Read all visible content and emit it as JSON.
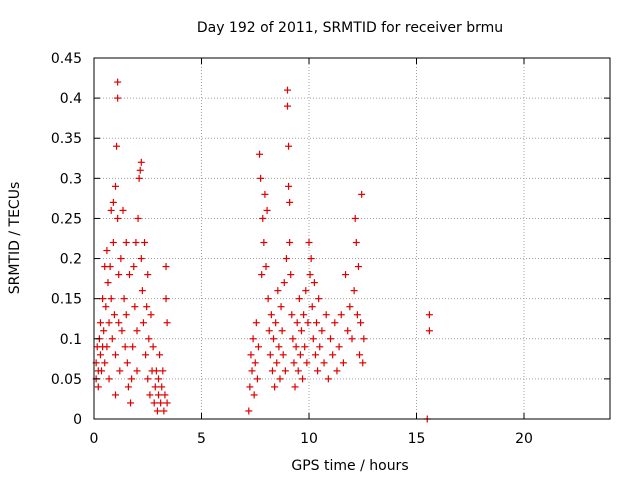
{
  "chart_data": {
    "type": "scatter",
    "title": "Day 192 of 2011, SRMTID for receiver brmu",
    "xlabel": "GPS time / hours",
    "ylabel": "SRMTID / TECUs",
    "xlim": [
      0,
      24
    ],
    "ylim": [
      0,
      0.45
    ],
    "xticks": [
      0,
      5,
      10,
      15,
      20
    ],
    "yticks": [
      0,
      0.05,
      0.1,
      0.15,
      0.2,
      0.25,
      0.3,
      0.35,
      0.4,
      0.45
    ],
    "ytick_labels": [
      "0",
      "0.05",
      "0.1",
      "0.15",
      "0.2",
      "0.25",
      "0.3",
      "0.35",
      "0.4",
      "0.45"
    ],
    "grid": true,
    "marker": "+",
    "color": "#e00000",
    "points": [
      [
        0.1,
        0.05
      ],
      [
        0.1,
        0.07
      ],
      [
        0.15,
        0.09
      ],
      [
        0.2,
        0.06
      ],
      [
        0.2,
        0.04
      ],
      [
        0.25,
        0.1
      ],
      [
        0.3,
        0.08
      ],
      [
        0.3,
        0.12
      ],
      [
        0.35,
        0.06
      ],
      [
        0.4,
        0.09
      ],
      [
        0.4,
        0.15
      ],
      [
        0.45,
        0.11
      ],
      [
        0.5,
        0.07
      ],
      [
        0.5,
        0.19
      ],
      [
        0.55,
        0.14
      ],
      [
        0.6,
        0.09
      ],
      [
        0.6,
        0.21
      ],
      [
        0.65,
        0.17
      ],
      [
        0.7,
        0.12
      ],
      [
        0.7,
        0.05
      ],
      [
        0.75,
        0.19
      ],
      [
        0.8,
        0.26
      ],
      [
        0.8,
        0.15
      ],
      [
        0.85,
        0.1
      ],
      [
        0.9,
        0.27
      ],
      [
        0.9,
        0.22
      ],
      [
        0.95,
        0.13
      ],
      [
        1.0,
        0.29
      ],
      [
        1.0,
        0.03
      ],
      [
        1.0,
        0.08
      ],
      [
        1.05,
        0.34
      ],
      [
        1.1,
        0.42
      ],
      [
        1.1,
        0.4
      ],
      [
        1.1,
        0.25
      ],
      [
        1.15,
        0.18
      ],
      [
        1.15,
        0.12
      ],
      [
        1.2,
        0.06
      ],
      [
        1.25,
        0.2
      ],
      [
        1.3,
        0.11
      ],
      [
        1.35,
        0.26
      ],
      [
        1.4,
        0.15
      ],
      [
        1.45,
        0.09
      ],
      [
        1.5,
        0.22
      ],
      [
        1.5,
        0.13
      ],
      [
        1.55,
        0.07
      ],
      [
        1.6,
        0.04
      ],
      [
        1.65,
        0.18
      ],
      [
        1.7,
        0.02
      ],
      [
        1.75,
        0.05
      ],
      [
        1.8,
        0.09
      ],
      [
        1.85,
        0.19
      ],
      [
        1.9,
        0.14
      ],
      [
        1.95,
        0.22
      ],
      [
        2.0,
        0.11
      ],
      [
        2.0,
        0.06
      ],
      [
        2.05,
        0.25
      ],
      [
        2.1,
        0.3
      ],
      [
        2.15,
        0.31
      ],
      [
        2.2,
        0.32
      ],
      [
        2.2,
        0.2
      ],
      [
        2.25,
        0.16
      ],
      [
        2.3,
        0.12
      ],
      [
        2.35,
        0.22
      ],
      [
        2.4,
        0.08
      ],
      [
        2.45,
        0.14
      ],
      [
        2.5,
        0.18
      ],
      [
        2.5,
        0.05
      ],
      [
        2.55,
        0.1
      ],
      [
        2.6,
        0.03
      ],
      [
        2.65,
        0.13
      ],
      [
        2.7,
        0.06
      ],
      [
        2.75,
        0.09
      ],
      [
        2.8,
        0.02
      ],
      [
        2.85,
        0.04
      ],
      [
        2.9,
        0.06
      ],
      [
        2.95,
        0.01
      ],
      [
        3.0,
        0.03
      ],
      [
        3.0,
        0.05
      ],
      [
        3.05,
        0.08
      ],
      [
        3.1,
        0.02
      ],
      [
        3.15,
        0.04
      ],
      [
        3.2,
        0.06
      ],
      [
        3.25,
        0.01
      ],
      [
        3.3,
        0.03
      ],
      [
        3.35,
        0.15
      ],
      [
        3.35,
        0.19
      ],
      [
        3.4,
        0.12
      ],
      [
        3.4,
        0.02
      ],
      [
        7.2,
        0.01
      ],
      [
        7.25,
        0.04
      ],
      [
        7.3,
        0.08
      ],
      [
        7.35,
        0.06
      ],
      [
        7.4,
        0.1
      ],
      [
        7.45,
        0.03
      ],
      [
        7.5,
        0.07
      ],
      [
        7.55,
        0.12
      ],
      [
        7.6,
        0.05
      ],
      [
        7.65,
        0.09
      ],
      [
        7.7,
        0.33
      ],
      [
        7.75,
        0.3
      ],
      [
        7.8,
        0.18
      ],
      [
        7.85,
        0.25
      ],
      [
        7.9,
        0.22
      ],
      [
        7.95,
        0.28
      ],
      [
        8.0,
        0.19
      ],
      [
        8.05,
        0.26
      ],
      [
        8.1,
        0.15
      ],
      [
        8.15,
        0.11
      ],
      [
        8.2,
        0.08
      ],
      [
        8.25,
        0.13
      ],
      [
        8.3,
        0.06
      ],
      [
        8.35,
        0.1
      ],
      [
        8.4,
        0.04
      ],
      [
        8.45,
        0.12
      ],
      [
        8.5,
        0.07
      ],
      [
        8.55,
        0.16
      ],
      [
        8.6,
        0.09
      ],
      [
        8.65,
        0.05
      ],
      [
        8.7,
        0.14
      ],
      [
        8.75,
        0.11
      ],
      [
        8.8,
        0.08
      ],
      [
        8.85,
        0.17
      ],
      [
        8.9,
        0.06
      ],
      [
        8.95,
        0.2
      ],
      [
        9.0,
        0.41
      ],
      [
        9.0,
        0.39
      ],
      [
        9.05,
        0.34
      ],
      [
        9.05,
        0.29
      ],
      [
        9.1,
        0.27
      ],
      [
        9.1,
        0.22
      ],
      [
        9.15,
        0.18
      ],
      [
        9.2,
        0.13
      ],
      [
        9.25,
        0.1
      ],
      [
        9.3,
        0.07
      ],
      [
        9.35,
        0.04
      ],
      [
        9.4,
        0.09
      ],
      [
        9.45,
        0.12
      ],
      [
        9.5,
        0.06
      ],
      [
        9.55,
        0.15
      ],
      [
        9.6,
        0.08
      ],
      [
        9.65,
        0.11
      ],
      [
        9.7,
        0.05
      ],
      [
        9.75,
        0.13
      ],
      [
        9.8,
        0.09
      ],
      [
        9.85,
        0.16
      ],
      [
        9.9,
        0.07
      ],
      [
        9.95,
        0.12
      ],
      [
        10.0,
        0.22
      ],
      [
        10.05,
        0.18
      ],
      [
        10.1,
        0.2
      ],
      [
        10.15,
        0.14
      ],
      [
        10.2,
        0.1
      ],
      [
        10.25,
        0.17
      ],
      [
        10.3,
        0.08
      ],
      [
        10.35,
        0.12
      ],
      [
        10.4,
        0.06
      ],
      [
        10.45,
        0.15
      ],
      [
        10.5,
        0.09
      ],
      [
        10.6,
        0.11
      ],
      [
        10.7,
        0.07
      ],
      [
        10.8,
        0.13
      ],
      [
        10.9,
        0.05
      ],
      [
        11.0,
        0.1
      ],
      [
        11.1,
        0.08
      ],
      [
        11.2,
        0.12
      ],
      [
        11.3,
        0.06
      ],
      [
        11.4,
        0.09
      ],
      [
        11.5,
        0.13
      ],
      [
        11.6,
        0.07
      ],
      [
        11.7,
        0.18
      ],
      [
        11.8,
        0.11
      ],
      [
        11.9,
        0.14
      ],
      [
        12.0,
        0.1
      ],
      [
        12.1,
        0.16
      ],
      [
        12.15,
        0.25
      ],
      [
        12.2,
        0.22
      ],
      [
        12.25,
        0.13
      ],
      [
        12.3,
        0.19
      ],
      [
        12.35,
        0.08
      ],
      [
        12.4,
        0.12
      ],
      [
        12.45,
        0.28
      ],
      [
        12.5,
        0.07
      ],
      [
        12.55,
        0.1
      ],
      [
        15.5,
        0.0
      ],
      [
        15.6,
        0.11
      ],
      [
        15.6,
        0.13
      ]
    ]
  }
}
